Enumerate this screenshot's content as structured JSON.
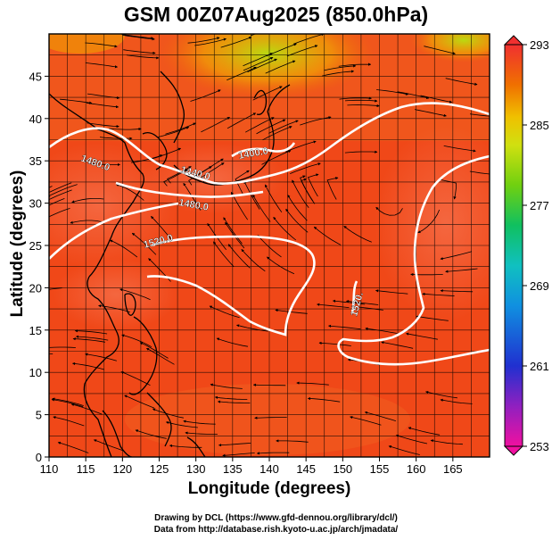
{
  "title": "GSM 00Z07Aug2025 (850.0hPa)",
  "axes": {
    "xlabel": "Longitude (degrees)",
    "ylabel": "Latitude  (degrees)",
    "xlim": [
      110,
      170
    ],
    "ylim": [
      0,
      50
    ],
    "xticks": [
      110,
      115,
      120,
      125,
      130,
      135,
      140,
      145,
      150,
      155,
      160,
      165
    ],
    "yticks": [
      0,
      5,
      10,
      15,
      20,
      25,
      30,
      35,
      40,
      45
    ]
  },
  "colorbar": {
    "ticks": [
      293,
      285,
      277,
      269,
      261,
      253
    ],
    "range": [
      253,
      293
    ],
    "colors": [
      "#f01090",
      "#8020c0",
      "#2030d0",
      "#1090e0",
      "#10c0d0",
      "#10c060",
      "#60d010",
      "#c0e010",
      "#f0d000",
      "#f08000",
      "#f04010",
      "#f03030"
    ]
  },
  "contours": {
    "labels": [
      "1480.0",
      "1440.0",
      "1400.0",
      "1480.0",
      "1520.0",
      "1520."
    ]
  },
  "credits": {
    "line1": "Drawing by DCL (https://www.gfd-dennou.org/library/dcl/)",
    "line2": "Data from http://database.rish.kyoto-u.ac.jp/arch/jmadata/"
  }
}
